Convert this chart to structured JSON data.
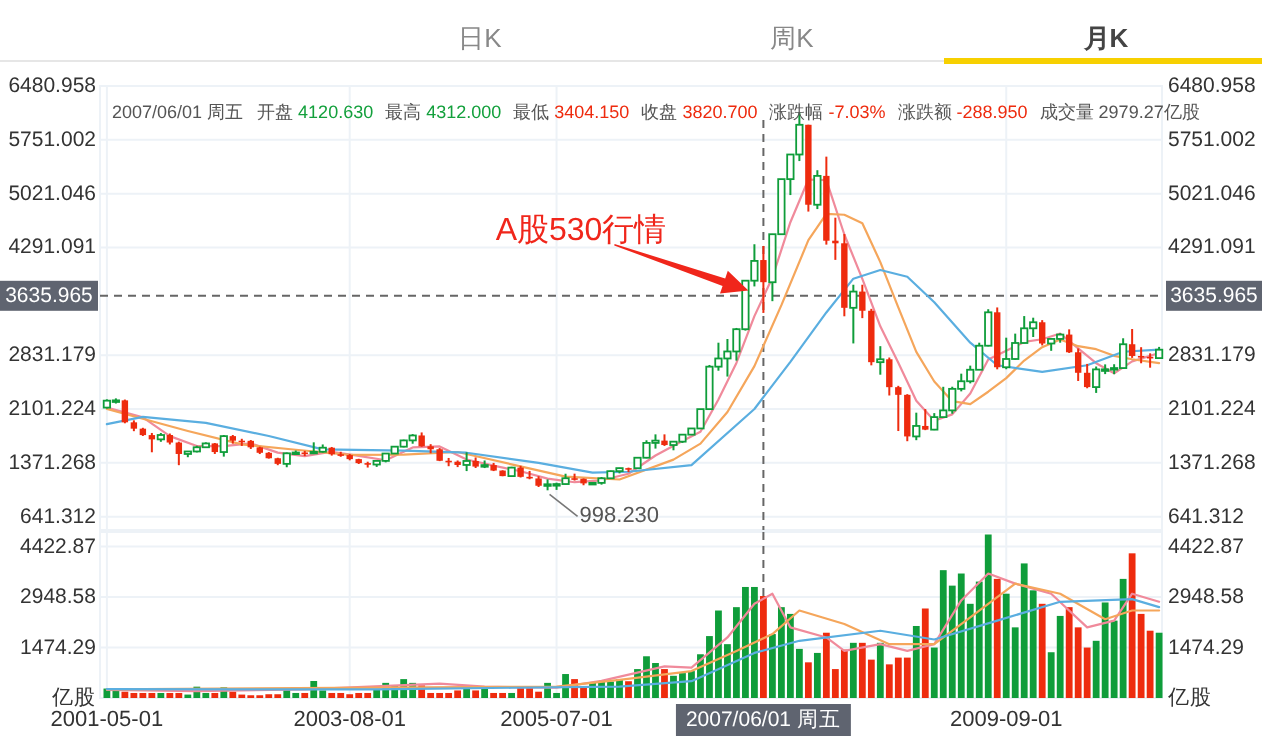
{
  "chart_data": [
    {
      "type": "candlestick",
      "x": [
        "2001-05",
        "2001-06",
        "2001-07",
        "2001-08",
        "2001-09",
        "2001-10",
        "2001-11",
        "2001-12",
        "2002-01",
        "2002-02",
        "2002-03",
        "2002-04",
        "2002-05",
        "2002-06",
        "2002-07",
        "2002-08",
        "2002-09",
        "2002-10",
        "2002-11",
        "2002-12",
        "2003-01",
        "2003-02",
        "2003-03",
        "2003-04",
        "2003-05",
        "2003-06",
        "2003-07",
        "2003-08",
        "2003-09",
        "2003-10",
        "2003-11",
        "2003-12",
        "2004-01",
        "2004-02",
        "2004-03",
        "2004-04",
        "2004-05",
        "2004-06",
        "2004-07",
        "2004-08",
        "2004-09",
        "2004-10",
        "2004-11",
        "2004-12",
        "2005-01",
        "2005-02",
        "2005-03",
        "2005-04",
        "2005-05",
        "2005-06",
        "2005-07",
        "2005-08",
        "2005-09",
        "2005-10",
        "2005-11",
        "2005-12",
        "2006-01",
        "2006-02",
        "2006-03",
        "2006-04",
        "2006-05",
        "2006-06",
        "2006-07",
        "2006-08",
        "2006-09",
        "2006-10",
        "2006-11",
        "2006-12",
        "2007-01",
        "2007-02",
        "2007-03",
        "2007-04",
        "2007-05",
        "2007-06",
        "2007-07",
        "2007-08",
        "2007-09",
        "2007-10",
        "2007-11",
        "2007-12",
        "2008-01",
        "2008-02",
        "2008-03",
        "2008-04",
        "2008-05",
        "2008-06",
        "2008-07",
        "2008-08",
        "2008-09",
        "2008-10",
        "2008-11",
        "2008-12",
        "2009-01",
        "2009-02",
        "2009-03",
        "2009-04",
        "2009-05",
        "2009-06",
        "2009-07",
        "2009-08",
        "2009-09",
        "2009-10",
        "2009-11",
        "2009-12",
        "2010-01",
        "2010-02",
        "2010-03",
        "2010-04",
        "2010-05",
        "2010-06",
        "2010-07",
        "2010-08",
        "2010-09",
        "2010-10",
        "2010-11",
        "2010-12",
        "2011-01",
        "2011-02"
      ],
      "ohlc": [
        [
          2120,
          2232,
          2107,
          2214
        ],
        [
          2214,
          2245,
          2175,
          2218
        ],
        [
          2218,
          2229,
          1907,
          1920
        ],
        [
          1920,
          1947,
          1800,
          1834
        ],
        [
          1834,
          1846,
          1735,
          1747
        ],
        [
          1747,
          1776,
          1514,
          1689
        ],
        [
          1689,
          1776,
          1656,
          1748
        ],
        [
          1748,
          1768,
          1620,
          1646
        ],
        [
          1646,
          1658,
          1339,
          1491
        ],
        [
          1491,
          1526,
          1447,
          1525
        ],
        [
          1525,
          1603,
          1512,
          1582
        ],
        [
          1582,
          1649,
          1577,
          1634
        ],
        [
          1634,
          1640,
          1491,
          1517
        ],
        [
          1517,
          1748,
          1455,
          1733
        ],
        [
          1733,
          1748,
          1631,
          1671
        ],
        [
          1671,
          1697,
          1600,
          1669
        ],
        [
          1669,
          1680,
          1559,
          1581
        ],
        [
          1581,
          1590,
          1490,
          1507
        ],
        [
          1507,
          1517,
          1428,
          1433
        ],
        [
          1433,
          1440,
          1339,
          1357
        ],
        [
          1357,
          1511,
          1311,
          1500
        ],
        [
          1500,
          1538,
          1483,
          1511
        ],
        [
          1511,
          1533,
          1462,
          1510
        ],
        [
          1510,
          1649,
          1490,
          1521
        ],
        [
          1521,
          1620,
          1509,
          1576
        ],
        [
          1576,
          1586,
          1469,
          1487
        ],
        [
          1487,
          1521,
          1453,
          1476
        ],
        [
          1476,
          1490,
          1405,
          1421
        ],
        [
          1421,
          1426,
          1355,
          1367
        ],
        [
          1367,
          1386,
          1307,
          1348
        ],
        [
          1348,
          1408,
          1316,
          1397
        ],
        [
          1397,
          1502,
          1377,
          1497
        ],
        [
          1497,
          1594,
          1492,
          1590
        ],
        [
          1590,
          1685,
          1580,
          1675
        ],
        [
          1675,
          1760,
          1630,
          1742
        ],
        [
          1742,
          1783,
          1589,
          1595
        ],
        [
          1595,
          1624,
          1500,
          1555
        ],
        [
          1555,
          1571,
          1394,
          1399
        ],
        [
          1399,
          1437,
          1325,
          1386
        ],
        [
          1386,
          1403,
          1313,
          1342
        ],
        [
          1342,
          1514,
          1259,
          1396
        ],
        [
          1396,
          1444,
          1301,
          1320
        ],
        [
          1320,
          1403,
          1300,
          1340
        ],
        [
          1340,
          1370,
          1259,
          1266
        ],
        [
          1266,
          1270,
          1189,
          1191
        ],
        [
          1191,
          1317,
          1181,
          1306
        ],
        [
          1306,
          1331,
          1172,
          1181
        ],
        [
          1181,
          1261,
          1148,
          1159
        ],
        [
          1159,
          1189,
          1043,
          1060
        ],
        [
          1060,
          1146,
          998.23,
          1080
        ],
        [
          1080,
          1102,
          1004,
          1083
        ],
        [
          1083,
          1223,
          1078,
          1162
        ],
        [
          1162,
          1224,
          1130,
          1155
        ],
        [
          1155,
          1159,
          1067,
          1092
        ],
        [
          1092,
          1111,
          1074,
          1099
        ],
        [
          1099,
          1179,
          1075,
          1161
        ],
        [
          1161,
          1265,
          1157,
          1258
        ],
        [
          1258,
          1303,
          1228,
          1299
        ],
        [
          1299,
          1306,
          1245,
          1298
        ],
        [
          1298,
          1445,
          1294,
          1440
        ],
        [
          1440,
          1677,
          1432,
          1641
        ],
        [
          1641,
          1757,
          1564,
          1672
        ],
        [
          1672,
          1757,
          1600,
          1612
        ],
        [
          1612,
          1660,
          1541,
          1658
        ],
        [
          1658,
          1755,
          1641,
          1753
        ],
        [
          1753,
          1842,
          1750,
          1837
        ],
        [
          1837,
          2100,
          1835,
          2099
        ],
        [
          2099,
          2698,
          2091,
          2675
        ],
        [
          2675,
          3000,
          2620,
          2786
        ],
        [
          2786,
          3050,
          2541,
          2881
        ],
        [
          2881,
          3200,
          2757,
          3183
        ],
        [
          3183,
          3848,
          3164,
          3841
        ],
        [
          3841,
          4335,
          3763,
          4109
        ],
        [
          4120.63,
          4312,
          3404.15,
          3820.7
        ],
        [
          3820,
          4475,
          3563,
          4471
        ],
        [
          4471,
          5219,
          4466,
          5218
        ],
        [
          5218,
          5555,
          5002,
          5552
        ],
        [
          5552,
          6124,
          5463,
          5955
        ],
        [
          5955,
          5956,
          4778,
          4871
        ],
        [
          4871,
          5339,
          4812,
          5262
        ],
        [
          5262,
          5523,
          4330,
          4383
        ],
        [
          4383,
          4695,
          4123,
          4348
        ],
        [
          4348,
          4473,
          3358,
          3473
        ],
        [
          3473,
          3786,
          2990,
          3693
        ],
        [
          3693,
          3786,
          3333,
          3433
        ],
        [
          3433,
          3459,
          2693,
          2736
        ],
        [
          2736,
          2953,
          2566,
          2775
        ],
        [
          2775,
          2799,
          2284,
          2397
        ],
        [
          2397,
          2415,
          1802,
          2293
        ],
        [
          2293,
          2302,
          1664,
          1729
        ],
        [
          1729,
          2051,
          1678,
          1871
        ],
        [
          1871,
          2100,
          1814,
          1821
        ],
        [
          1821,
          2045,
          1814,
          1991
        ],
        [
          1991,
          2402,
          1990,
          2082
        ],
        [
          2082,
          2403,
          2037,
          2374
        ],
        [
          2374,
          2580,
          2340,
          2477
        ],
        [
          2477,
          2689,
          2448,
          2633
        ],
        [
          2633,
          3000,
          2630,
          2959
        ],
        [
          2959,
          3454,
          2950,
          3412
        ],
        [
          3412,
          3478,
          2639,
          2667
        ],
        [
          2667,
          3068,
          2640,
          2779
        ],
        [
          2779,
          3123,
          2770,
          2996
        ],
        [
          2996,
          3361,
          2990,
          3195
        ],
        [
          3195,
          3339,
          3077,
          3277
        ],
        [
          3277,
          3306,
          2963,
          2989
        ],
        [
          2989,
          3063,
          2890,
          3051
        ],
        [
          3051,
          3128,
          3000,
          3110
        ],
        [
          3110,
          3181,
          2861,
          2870
        ],
        [
          2870,
          2922,
          2481,
          2592
        ],
        [
          2592,
          2712,
          2382,
          2398
        ],
        [
          2398,
          2677,
          2319,
          2638
        ],
        [
          2638,
          2706,
          2574,
          2639
        ],
        [
          2639,
          2708,
          2573,
          2656
        ],
        [
          2656,
          3060,
          2644,
          2979
        ],
        [
          2979,
          3186,
          2794,
          2820
        ],
        [
          2820,
          2939,
          2721,
          2808
        ],
        [
          2808,
          2856,
          2661,
          2791
        ],
        [
          2791,
          2943,
          2780,
          2905
        ]
      ],
      "colors": [
        "#0f9d3a",
        "#0f9d3a",
        "#ee2b0e",
        "#ee2b0e",
        "#ee2b0e",
        "#ee2b0e",
        "#0f9d3a",
        "#ee2b0e",
        "#ee2b0e",
        "#0f9d3a",
        "#0f9d3a",
        "#0f9d3a",
        "#ee2b0e",
        "#0f9d3a",
        "#ee2b0e",
        "#ee2b0e",
        "#ee2b0e",
        "#ee2b0e",
        "#ee2b0e",
        "#ee2b0e",
        "#0f9d3a",
        "#0f9d3a",
        "#ee2b0e",
        "#0f9d3a",
        "#0f9d3a",
        "#ee2b0e",
        "#ee2b0e",
        "#ee2b0e",
        "#ee2b0e",
        "#ee2b0e",
        "#0f9d3a",
        "#0f9d3a",
        "#0f9d3a",
        "#0f9d3a",
        "#0f9d3a",
        "#ee2b0e",
        "#ee2b0e",
        "#ee2b0e",
        "#ee2b0e",
        "#ee2b0e",
        "#0f9d3a",
        "#ee2b0e",
        "#0f9d3a",
        "#ee2b0e",
        "#ee2b0e",
        "#0f9d3a",
        "#ee2b0e",
        "#ee2b0e",
        "#ee2b0e",
        "#0f9d3a",
        "#0f9d3a",
        "#0f9d3a",
        "#ee2b0e",
        "#ee2b0e",
        "#0f9d3a",
        "#0f9d3a",
        "#0f9d3a",
        "#0f9d3a",
        "#ee2b0e",
        "#0f9d3a",
        "#0f9d3a",
        "#0f9d3a",
        "#ee2b0e",
        "#0f9d3a",
        "#0f9d3a",
        "#0f9d3a",
        "#0f9d3a",
        "#0f9d3a",
        "#0f9d3a",
        "#0f9d3a",
        "#0f9d3a",
        "#0f9d3a",
        "#0f9d3a",
        "#ee2b0e",
        "#0f9d3a",
        "#0f9d3a",
        "#0f9d3a",
        "#0f9d3a",
        "#ee2b0e",
        "#0f9d3a",
        "#ee2b0e",
        "#ee2b0e",
        "#ee2b0e",
        "#0f9d3a",
        "#ee2b0e",
        "#ee2b0e",
        "#0f9d3a",
        "#ee2b0e",
        "#ee2b0e",
        "#ee2b0e",
        "#0f9d3a",
        "#ee2b0e",
        "#0f9d3a",
        "#0f9d3a",
        "#0f9d3a",
        "#0f9d3a",
        "#0f9d3a",
        "#0f9d3a",
        "#0f9d3a",
        "#ee2b0e",
        "#0f9d3a",
        "#0f9d3a",
        "#0f9d3a",
        "#0f9d3a",
        "#ee2b0e",
        "#0f9d3a",
        "#0f9d3a",
        "#ee2b0e",
        "#ee2b0e",
        "#ee2b0e",
        "#0f9d3a",
        "#0f9d3a",
        "#0f9d3a",
        "#0f9d3a",
        "#ee2b0e",
        "#ee2b0e",
        "#ee2b0e",
        "#0f9d3a"
      ],
      "series": [
        {
          "type": "line",
          "color": "#f08a9b",
          "x": [
            "2001-05",
            "2001-09",
            "2001-12",
            "2002-03",
            "2002-06",
            "2002-09",
            "2002-12",
            "2003-03",
            "2003-06",
            "2003-09",
            "2003-12",
            "2004-03",
            "2004-06",
            "2004-09",
            "2004-12",
            "2005-03",
            "2005-06",
            "2005-09",
            "2005-12",
            "2006-03",
            "2006-06",
            "2006-09",
            "2006-11",
            "2007-01",
            "2007-03",
            "2007-05",
            "2007-07",
            "2007-09",
            "2007-11",
            "2008-01",
            "2008-03",
            "2008-05",
            "2008-07",
            "2008-09",
            "2008-11",
            "2009-01",
            "2009-03",
            "2009-05",
            "2009-07",
            "2009-09",
            "2009-11",
            "2010-01",
            "2010-03",
            "2010-05",
            "2010-07",
            "2010-09",
            "2010-11",
            "2011-02"
          ],
          "values": [
            2120,
            1987,
            1733,
            1598,
            1598,
            1634,
            1509,
            1462,
            1521,
            1465,
            1406,
            1580,
            1593,
            1416,
            1333,
            1257,
            1157,
            1108,
            1134,
            1223,
            1470,
            1667,
            1792,
            2230,
            2725,
            3360,
            3885,
            4634,
            5213,
            5205,
            4467,
            3866,
            3222,
            2727,
            2213,
            1941,
            2028,
            2311,
            2771,
            2890,
            3010,
            3047,
            3124,
            2922,
            2722,
            2585,
            2746,
            2861
          ]
        },
        {
          "type": "line",
          "color": "#f5a65b",
          "x": [
            "2001-05",
            "2002-02",
            "2002-08",
            "2003-02",
            "2003-08",
            "2004-02",
            "2004-08",
            "2005-02",
            "2005-08",
            "2006-02",
            "2006-08",
            "2006-11",
            "2007-02",
            "2007-05",
            "2007-08",
            "2007-11",
            "2008-01",
            "2008-03",
            "2008-05",
            "2008-07",
            "2008-09",
            "2008-11",
            "2009-01",
            "2009-03",
            "2009-05",
            "2009-07",
            "2009-09",
            "2009-11",
            "2010-01",
            "2010-03",
            "2010-05",
            "2010-07",
            "2010-09",
            "2010-11",
            "2011-02"
          ],
          "values": [
            2100,
            1803,
            1621,
            1548,
            1479,
            1483,
            1518,
            1350,
            1183,
            1145,
            1414,
            1631,
            2061,
            2682,
            3509,
            4390,
            4748,
            4735,
            4619,
            4093,
            3480,
            2875,
            2474,
            2207,
            2167,
            2335,
            2520,
            2758,
            2939,
            3044,
            2953,
            2912,
            2822,
            2775,
            2723
          ]
        },
        {
          "type": "line",
          "color": "#5aaee0",
          "x": [
            "2001-05",
            "2001-09",
            "2002-04",
            "2002-11",
            "2003-05",
            "2004-02",
            "2004-09",
            "2005-05",
            "2005-11",
            "2006-03",
            "2006-10",
            "2007-05",
            "2007-09",
            "2008-01",
            "2008-04",
            "2008-07",
            "2008-10",
            "2009-01",
            "2009-05",
            "2009-08",
            "2010-01",
            "2010-06",
            "2010-10",
            "2011-02"
          ],
          "values": [
            1895,
            1994,
            1913,
            1735,
            1553,
            1535,
            1508,
            1371,
            1238,
            1250,
            1340,
            2101,
            2740,
            3410,
            3868,
            3986,
            3895,
            3548,
            3000,
            2694,
            2603,
            2694,
            2877,
            2905
          ]
        }
      ],
      "xlim": [
        "2001-04-08",
        "2011-02-10"
      ],
      "xticks": [
        "2001-05-01",
        "2003-08-01",
        "2005-07-01",
        "2009-09-01"
      ],
      "ylim": [
        460,
        6480.958
      ],
      "yticks": [
        641.312,
        1371.268,
        2101.224,
        2831.179,
        4291.091,
        5021.046,
        5751.002,
        6480.958
      ],
      "y2lim": [
        460,
        6480.958
      ],
      "y2ticks": [
        641.312,
        1371.268,
        2101.224,
        2831.179,
        4291.091,
        5021.046,
        5751.002,
        6480.958
      ],
      "tick_labels": "y",
      "grid": true,
      "ref_lines": [
        {
          "axis": "y",
          "value": 3635.965,
          "label": "3635.965",
          "line_style": "dashed"
        },
        {
          "axis": "x",
          "value": "2007-06-01",
          "line_style": "dashed"
        }
      ],
      "annotations": [
        "日K",
        "周K",
        "月K",
        "2007/06/01 周五",
        "开盘",
        "4120.630",
        "最高",
        "4312.000",
        "最低",
        "3404.150",
        "收盘",
        "3820.700",
        "涨跌幅",
        "-7.03%",
        "涨跌额",
        "-288.950",
        "成交量",
        "2979.27亿股",
        {
          "text": "A股530行情",
          "x": "2007-05",
          "y": 3841
        },
        {
          "text": "998.230",
          "x": "2005-06",
          "y": 998.23
        }
      ]
    },
    {
      "type": "bar",
      "x": [
        "2001-05",
        "2001-06",
        "2001-07",
        "2001-08",
        "2001-09",
        "2001-10",
        "2001-11",
        "2001-12",
        "2002-01",
        "2002-02",
        "2002-03",
        "2002-04",
        "2002-05",
        "2002-06",
        "2002-07",
        "2002-08",
        "2002-09",
        "2002-10",
        "2002-11",
        "2002-12",
        "2003-01",
        "2003-02",
        "2003-03",
        "2003-04",
        "2003-05",
        "2003-06",
        "2003-07",
        "2003-08",
        "2003-09",
        "2003-10",
        "2003-11",
        "2003-12",
        "2004-01",
        "2004-02",
        "2004-03",
        "2004-04",
        "2004-05",
        "2004-06",
        "2004-07",
        "2004-08",
        "2004-09",
        "2004-10",
        "2004-11",
        "2004-12",
        "2005-01",
        "2005-02",
        "2005-03",
        "2005-04",
        "2005-05",
        "2005-06",
        "2005-07",
        "2005-08",
        "2005-09",
        "2005-10",
        "2005-11",
        "2005-12",
        "2006-01",
        "2006-02",
        "2006-03",
        "2006-04",
        "2006-05",
        "2006-06",
        "2006-07",
        "2006-08",
        "2006-09",
        "2006-10",
        "2006-11",
        "2006-12",
        "2007-01",
        "2007-02",
        "2007-03",
        "2007-04",
        "2007-05",
        "2007-06",
        "2007-07",
        "2007-08",
        "2007-09",
        "2007-10",
        "2007-11",
        "2007-12",
        "2008-01",
        "2008-02",
        "2008-03",
        "2008-04",
        "2008-05",
        "2008-06",
        "2008-07",
        "2008-08",
        "2008-09",
        "2008-10",
        "2008-11",
        "2008-12",
        "2009-01",
        "2009-02",
        "2009-03",
        "2009-04",
        "2009-05",
        "2009-06",
        "2009-07",
        "2009-08",
        "2009-09",
        "2009-10",
        "2009-11",
        "2009-12",
        "2010-01",
        "2010-02",
        "2010-03",
        "2010-04",
        "2010-05",
        "2010-06",
        "2010-07",
        "2010-08",
        "2010-09",
        "2010-10",
        "2010-11",
        "2010-12",
        "2011-01",
        "2011-02"
      ],
      "series": [
        {
          "type": "bar",
          "colors": [
            "#0f9d3a",
            "#0f9d3a",
            "#ee2b0e",
            "#ee2b0e",
            "#ee2b0e",
            "#ee2b0e",
            "#0f9d3a",
            "#ee2b0e",
            "#ee2b0e",
            "#0f9d3a",
            "#0f9d3a",
            "#0f9d3a",
            "#ee2b0e",
            "#0f9d3a",
            "#ee2b0e",
            "#ee2b0e",
            "#ee2b0e",
            "#ee2b0e",
            "#ee2b0e",
            "#ee2b0e",
            "#0f9d3a",
            "#0f9d3a",
            "#ee2b0e",
            "#0f9d3a",
            "#0f9d3a",
            "#ee2b0e",
            "#ee2b0e",
            "#ee2b0e",
            "#ee2b0e",
            "#ee2b0e",
            "#0f9d3a",
            "#0f9d3a",
            "#0f9d3a",
            "#0f9d3a",
            "#0f9d3a",
            "#ee2b0e",
            "#ee2b0e",
            "#ee2b0e",
            "#ee2b0e",
            "#ee2b0e",
            "#0f9d3a",
            "#ee2b0e",
            "#0f9d3a",
            "#ee2b0e",
            "#ee2b0e",
            "#0f9d3a",
            "#ee2b0e",
            "#ee2b0e",
            "#ee2b0e",
            "#0f9d3a",
            "#0f9d3a",
            "#0f9d3a",
            "#ee2b0e",
            "#ee2b0e",
            "#0f9d3a",
            "#0f9d3a",
            "#0f9d3a",
            "#0f9d3a",
            "#ee2b0e",
            "#0f9d3a",
            "#0f9d3a",
            "#0f9d3a",
            "#ee2b0e",
            "#0f9d3a",
            "#0f9d3a",
            "#0f9d3a",
            "#0f9d3a",
            "#0f9d3a",
            "#0f9d3a",
            "#0f9d3a",
            "#0f9d3a",
            "#0f9d3a",
            "#0f9d3a",
            "#ee2b0e",
            "#0f9d3a",
            "#0f9d3a",
            "#0f9d3a",
            "#0f9d3a",
            "#ee2b0e",
            "#0f9d3a",
            "#ee2b0e",
            "#ee2b0e",
            "#ee2b0e",
            "#0f9d3a",
            "#ee2b0e",
            "#ee2b0e",
            "#0f9d3a",
            "#ee2b0e",
            "#ee2b0e",
            "#ee2b0e",
            "#0f9d3a",
            "#ee2b0e",
            "#0f9d3a",
            "#0f9d3a",
            "#0f9d3a",
            "#0f9d3a",
            "#0f9d3a",
            "#0f9d3a",
            "#0f9d3a",
            "#ee2b0e",
            "#0f9d3a",
            "#0f9d3a",
            "#0f9d3a",
            "#0f9d3a",
            "#ee2b0e",
            "#0f9d3a",
            "#0f9d3a",
            "#ee2b0e",
            "#ee2b0e",
            "#ee2b0e",
            "#0f9d3a",
            "#0f9d3a",
            "#0f9d3a",
            "#0f9d3a",
            "#ee2b0e",
            "#ee2b0e",
            "#ee2b0e",
            "#0f9d3a"
          ],
          "values": [
            276,
            276,
            184,
            147,
            147,
            147,
            147,
            147,
            147,
            100,
            331,
            147,
            147,
            313,
            184,
            100,
            80,
            80,
            110,
            110,
            276,
            147,
            147,
            497,
            221,
            147,
            147,
            110,
            147,
            147,
            258,
            442,
            368,
            552,
            442,
            368,
            147,
            147,
            147,
            221,
            368,
            221,
            294,
            147,
            147,
            147,
            331,
            331,
            184,
            442,
            147,
            700,
            552,
            294,
            442,
            479,
            479,
            552,
            490,
            845,
            1219,
            1022,
            845,
            649,
            727,
            786,
            1278,
            1809,
            2556,
            1573,
            2654,
            3244,
            3244,
            2979.27,
            1868,
            2654,
            2457,
            1435,
            1042,
            1317,
            1907,
            845,
            1415,
            1612,
            1612,
            1121,
            1612,
            983,
            1180,
            1180,
            2104,
            2615,
            1474,
            3735,
            3283,
            3637,
            2752,
            3401,
            4777,
            3480,
            3047,
            2064,
            3932,
            3146,
            2752,
            1337,
            2398,
            2654,
            2064,
            1474,
            1671,
            2791,
            2261,
            3480,
            4227,
            2457,
            1966,
            1907
          ]
        },
        {
          "type": "line",
          "color": "#f08a9b",
          "x": [
            "2001-05",
            "2002-03",
            "2003-03",
            "2004-06",
            "2004-11",
            "2005-07",
            "2005-12",
            "2006-07",
            "2006-10",
            "2007-02",
            "2007-05",
            "2007-07",
            "2007-09",
            "2008-01",
            "2008-03",
            "2008-07",
            "2008-10",
            "2009-01",
            "2009-04",
            "2009-07",
            "2009-10",
            "2010-02",
            "2010-06",
            "2010-09",
            "2010-11",
            "2011-02"
          ],
          "values": [
            240,
            200,
            250,
            420,
            330,
            300,
            500,
            924,
            885,
            1769,
            2752,
            3047,
            2064,
            1769,
            1376,
            1573,
            1376,
            1573,
            2851,
            3637,
            3342,
            3047,
            2064,
            2261,
            3047,
            2811
          ]
        },
        {
          "type": "line",
          "color": "#f5a65b",
          "x": [
            "2001-05",
            "2004-09",
            "2005-07",
            "2006-02",
            "2006-10",
            "2007-03",
            "2007-07",
            "2007-10",
            "2008-03",
            "2008-08",
            "2009-01",
            "2009-05",
            "2009-10",
            "2010-03",
            "2010-08",
            "2010-11",
            "2011-02"
          ],
          "values": [
            250,
            320,
            330,
            531,
            786,
            1376,
            1868,
            2556,
            2163,
            1573,
            1573,
            2359,
            3342,
            3047,
            2300,
            2556,
            2556
          ]
        },
        {
          "type": "line",
          "color": "#5aaee0",
          "x": [
            "2001-05",
            "2003-11",
            "2005-02",
            "2006-02",
            "2006-10",
            "2007-05",
            "2007-10",
            "2008-07",
            "2009-01",
            "2009-08",
            "2010-03",
            "2010-11",
            "2011-02"
          ],
          "values": [
            260,
            250,
            300,
            334,
            491,
            1317,
            1671,
            1966,
            1710,
            2261,
            2811,
            2890,
            2654
          ]
        }
      ],
      "xlim": [
        "2001-04-08",
        "2011-02-10"
      ],
      "xticks": [
        "2001-05-01",
        "2003-08-01",
        "2005-07-01",
        "2009-09-01"
      ],
      "ylim": [
        0,
        4850
      ],
      "yticks": [
        {
          "value": 0,
          "label": "亿股"
        },
        1474.29,
        2948.58,
        4422.87
      ],
      "y2lim": [
        0,
        4850
      ],
      "y2ticks": [
        {
          "value": 0,
          "label": "亿股"
        },
        1474.29,
        2948.58,
        4422.87
      ],
      "grid": true,
      "ref_lines": [
        {
          "axis": "x",
          "value": "2007-06-01",
          "label": "2007/06/01 周五",
          "line_style": "dashed"
        }
      ]
    }
  ]
}
